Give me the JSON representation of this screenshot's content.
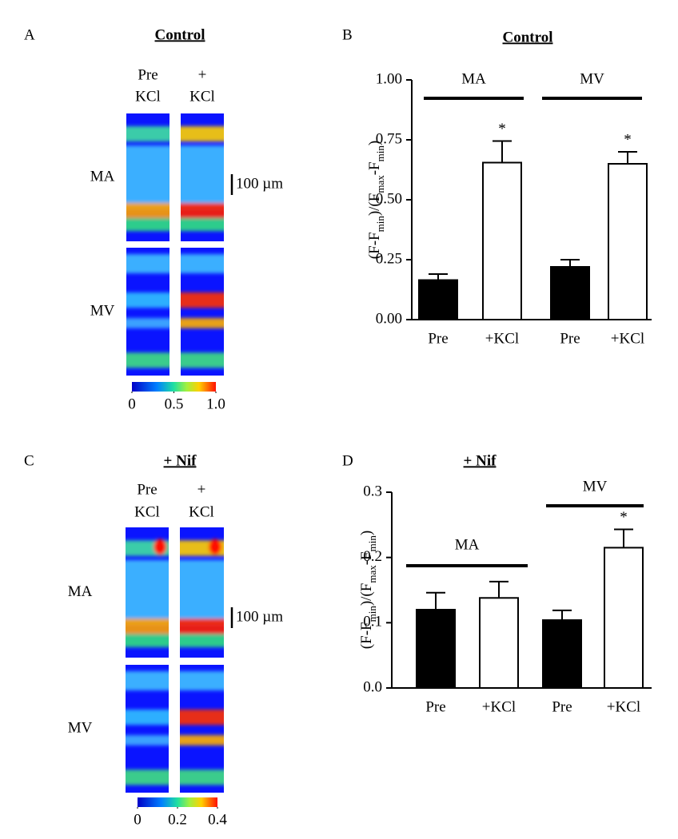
{
  "panels": [
    {
      "label": "A",
      "title": "Control",
      "columns": [
        [
          "Pre",
          "KCl"
        ],
        [
          "+",
          "KCl"
        ]
      ],
      "rows": [
        "MA",
        "MV"
      ],
      "scale_bar": "100 µm",
      "colorbar": {
        "lim": [
          0,
          1
        ],
        "ticks": [
          0,
          0.5,
          {
            "value": 1,
            "label": "1.0"
          }
        ]
      }
    },
    {
      "label": "C",
      "title": "+ Nif",
      "columns": [
        [
          "Pre",
          "KCl"
        ],
        [
          "+",
          "KCl"
        ]
      ],
      "rows": [
        "MA",
        "MV"
      ],
      "scale_bar": "100 µm",
      "colorbar": {
        "lim": [
          0,
          0.4
        ],
        "ticks": [
          0,
          0.2,
          0.4
        ]
      }
    }
  ],
  "chart_data": [
    {
      "type": "bar",
      "label": "B",
      "title": "Control",
      "ylabel": [
        {
          "text": "(F-F"
        },
        {
          "text": "min",
          "sub": true
        },
        {
          "text": ")/(F"
        },
        {
          "text": "max",
          "sub": true
        },
        {
          "text": "-F"
        },
        {
          "text": "min",
          "sub": true
        },
        {
          "text": ")"
        }
      ],
      "categories": [
        "Pre",
        "+KCl",
        "Pre",
        "+KCl"
      ],
      "values": [
        0.165,
        0.655,
        0.22,
        0.65
      ],
      "errors": [
        0.025,
        0.09,
        0.03,
        0.05
      ],
      "colors": [
        "#000000",
        "#ffffff",
        "#000000",
        "#ffffff"
      ],
      "groups": [
        "MA",
        "MV"
      ],
      "significance": [
        null,
        "*",
        null,
        "*"
      ],
      "ylim": [
        0,
        1
      ],
      "yticks": [
        {
          "value": 0,
          "label": "0.00"
        },
        {
          "value": 0.25,
          "label": "0.25"
        },
        {
          "value": 0.5,
          "label": "0.50"
        },
        {
          "value": 0.75,
          "label": "0.75"
        },
        {
          "value": 1,
          "label": "1.00"
        }
      ]
    },
    {
      "type": "bar",
      "label": "D",
      "title": "+ Nif",
      "ylabel": [
        {
          "text": "(F-F"
        },
        {
          "text": "min",
          "sub": true
        },
        {
          "text": ")/(F"
        },
        {
          "text": "max",
          "sub": true
        },
        {
          "text": "-F"
        },
        {
          "text": "min",
          "sub": true
        },
        {
          "text": ")"
        }
      ],
      "categories": [
        "Pre",
        "+KCl",
        "Pre",
        "+KCl"
      ],
      "values": [
        0.12,
        0.138,
        0.104,
        0.215
      ],
      "errors": [
        0.026,
        0.025,
        0.015,
        0.028
      ],
      "colors": [
        "#000000",
        "#ffffff",
        "#000000",
        "#ffffff"
      ],
      "groups": [
        "MA",
        "MV"
      ],
      "significance": [
        null,
        null,
        null,
        "*"
      ],
      "ylim": [
        0,
        0.3
      ],
      "yticks": [
        {
          "value": 0,
          "label": "0.0"
        },
        {
          "value": 0.1,
          "label": "0.1"
        },
        {
          "value": 0.2,
          "label": "0.2"
        },
        {
          "value": 0.3,
          "label": "0.3"
        }
      ]
    }
  ]
}
